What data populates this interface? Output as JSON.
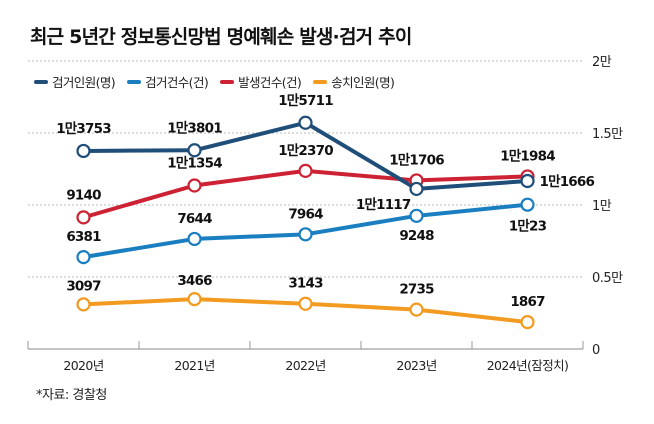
{
  "title": "최근 5년간 정보통신망법 명예훼손 발생·검거 추이",
  "source": "*자료: 경찰청",
  "chart_data": {
    "type": "line",
    "title": "최근 5년간 정보통신망법 명예훼손 발생·검거 추이",
    "xlabel": "",
    "ylabel": "",
    "categories": [
      "2020년",
      "2021년",
      "2022년",
      "2023년",
      "2024년(잠정치)"
    ],
    "ylim": [
      0,
      20000
    ],
    "yticks": [
      {
        "value": 0,
        "label": "0"
      },
      {
        "value": 5000,
        "label": "0.5만"
      },
      {
        "value": 10000,
        "label": "1만"
      },
      {
        "value": 15000,
        "label": "1.5만"
      },
      {
        "value": 20000,
        "label": "2만"
      }
    ],
    "grid": true,
    "legend_position": "top-left",
    "series": [
      {
        "name": "검거인원(명)",
        "color": "#1f4e79",
        "values": [
          13753,
          13801,
          15711,
          11117,
          11666
        ],
        "labels": [
          "1만3753",
          "1만3801",
          "1만5711",
          "1만1117",
          "1만1666"
        ]
      },
      {
        "name": "검거건수(건)",
        "color": "#1a7fc1",
        "values": [
          6381,
          7644,
          7964,
          9248,
          10023
        ],
        "labels": [
          "6381",
          "7644",
          "7964",
          "9248",
          "1만23"
        ]
      },
      {
        "name": "발생건수(건)",
        "color": "#cc2233",
        "values": [
          9140,
          11354,
          12370,
          11706,
          11984
        ],
        "labels": [
          "9140",
          "1만1354",
          "1만2370",
          "1만1706",
          "1만1984"
        ]
      },
      {
        "name": "송치인원(명)",
        "color": "#f39a21",
        "values": [
          3097,
          3466,
          3143,
          2735,
          1867
        ],
        "labels": [
          "3097",
          "3466",
          "3143",
          "2735",
          "1867"
        ]
      }
    ]
  }
}
